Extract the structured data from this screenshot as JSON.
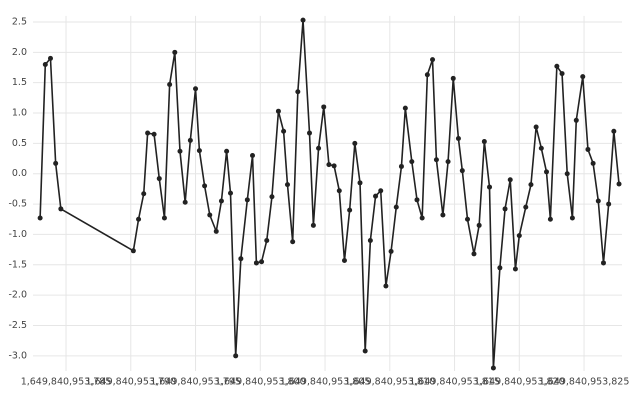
{
  "chart_data": {
    "type": "line",
    "x": [
      1649840953783,
      1649840953783.4,
      1649840953783.8,
      1649840953784.2,
      1649840953784.6,
      1649840953790.2,
      1649840953790.6,
      1649840953791,
      1649840953791.3,
      1649840953791.8,
      1649840953792.2,
      1649840953792.6,
      1649840953793,
      1649840953793.4,
      1649840953793.8,
      1649840953794.2,
      1649840953794.6,
      1649840953795,
      1649840953795.3,
      1649840953795.7,
      1649840953796.1,
      1649840953796.6,
      1649840953797,
      1649840953797.4,
      1649840953797.7,
      1649840953798.1,
      1649840953798.5,
      1649840953799,
      1649840953799.4,
      1649840953799.7,
      1649840953800.1,
      1649840953800.5,
      1649840953800.9,
      1649840953801.4,
      1649840953801.8,
      1649840953802.1,
      1649840953802.5,
      1649840953802.9,
      1649840953803.3,
      1649840953803.8,
      1649840953804.1,
      1649840953804.5,
      1649840953804.9,
      1649840953805.3,
      1649840953805.7,
      1649840953806.1,
      1649840953806.5,
      1649840953806.9,
      1649840953807.3,
      1649840953807.7,
      1649840953808.1,
      1649840953808.5,
      1649840953808.9,
      1649840953809.3,
      1649840953809.7,
      1649840953810.1,
      1649840953810.5,
      1649840953810.9,
      1649840953811.2,
      1649840953811.7,
      1649840953812.1,
      1649840953812.5,
      1649840953812.9,
      1649840953813.3,
      1649840953813.6,
      1649840953814.1,
      1649840953814.5,
      1649840953814.9,
      1649840953815.3,
      1649840953815.6,
      1649840953816,
      1649840953816.5,
      1649840953816.9,
      1649840953817.3,
      1649840953817.7,
      1649840953818,
      1649840953818.5,
      1649840953818.9,
      1649840953819.3,
      1649840953819.7,
      1649840953820,
      1649840953820.5,
      1649840953820.9,
      1649840953821.3,
      1649840953821.7,
      1649840953822.1,
      1649840953822.4,
      1649840953822.9,
      1649840953823.3,
      1649840953823.7,
      1649840953824.1,
      1649840953824.4,
      1649840953824.9,
      1649840953825.3,
      1649840953825.7,
      1649840953826.1,
      1649840953826.5,
      1649840953826.9,
      1649840953827.3,
      1649840953827.7
    ],
    "values": [
      -0.73,
      1.8,
      1.9,
      0.17,
      -0.58,
      -1.27,
      -0.75,
      -0.33,
      0.67,
      0.65,
      -0.08,
      -0.73,
      1.47,
      2.0,
      0.37,
      -0.47,
      0.55,
      1.4,
      0.38,
      -0.2,
      -0.68,
      -0.95,
      -0.45,
      0.37,
      -0.32,
      -3.0,
      -1.4,
      -0.43,
      0.3,
      -1.47,
      -1.45,
      -1.1,
      -0.38,
      1.03,
      0.7,
      -0.18,
      -1.12,
      1.35,
      2.53,
      0.67,
      -0.85,
      0.42,
      1.1,
      0.15,
      0.13,
      -0.28,
      -1.43,
      -0.6,
      0.5,
      -0.15,
      -2.92,
      -1.1,
      -0.37,
      -0.28,
      -1.85,
      -1.28,
      -0.55,
      0.12,
      1.08,
      0.2,
      -0.43,
      -0.73,
      1.63,
      1.88,
      0.23,
      -0.68,
      0.2,
      1.57,
      0.58,
      0.05,
      -0.75,
      -1.32,
      -0.85,
      0.53,
      -0.22,
      -3.2,
      -1.55,
      -0.58,
      -0.1,
      -1.57,
      -1.02,
      -0.55,
      -0.18,
      0.77,
      0.42,
      0.03,
      -0.75,
      1.77,
      1.65,
      0,
      -0.73,
      0.88,
      1.6,
      0.4,
      0.17,
      -0.45,
      -1.47,
      -0.5,
      0.7,
      -0.17
    ],
    "color": "#222222",
    "xlim": [
      1649840953782.45,
      1649840953827.93
    ],
    "xticks": [
      {
        "value": 1649840953785,
        "label": "1,649,840,953,785"
      },
      {
        "value": 1649840953790,
        "label": "1,649,840,953,790"
      },
      {
        "value": 1649840953795,
        "label": "1,649,840,953,795"
      },
      {
        "value": 1649840953800,
        "label": "1,649,840,953,800"
      },
      {
        "value": 1649840953805,
        "label": "1,649,840,953,805"
      },
      {
        "value": 1649840953810,
        "label": "1,649,840,953,810"
      },
      {
        "value": 1649840953815,
        "label": "1,649,840,953,815"
      },
      {
        "value": 1649840953820,
        "label": "1,649,840,953,820"
      },
      {
        "value": 1649840953825,
        "label": "1,649,840,953,825"
      }
    ],
    "ylim": [
      -3.25,
      2.6
    ],
    "yticks": [
      {
        "value": -3,
        "label": "-3.0"
      },
      -2.5,
      {
        "value": -2,
        "label": "-2.0"
      },
      -1.5,
      {
        "value": -1,
        "label": "-1.0"
      },
      -0.5,
      {
        "value": 0,
        "label": "0.0"
      },
      0.5,
      {
        "value": 1,
        "label": "1.0"
      },
      1.5,
      {
        "value": 2,
        "label": "2.0"
      },
      2.5
    ],
    "grid": true
  }
}
